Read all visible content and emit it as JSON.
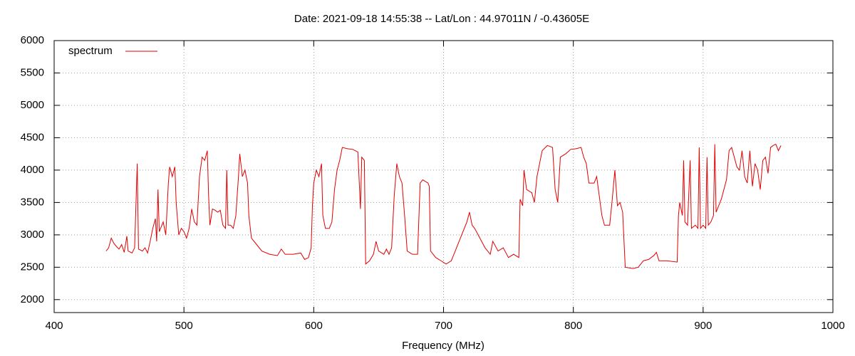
{
  "chart_data": {
    "type": "line",
    "title": "Date: 2021-09-18 14:55:38  --  Lat/Lon : 44.97011N / -0.43605E",
    "xlabel": "Frequency (MHz)",
    "xlim": [
      400,
      1000
    ],
    "xticks": [
      400,
      500,
      600,
      700,
      800,
      900,
      1000
    ],
    "ylim": [
      1800,
      6000
    ],
    "yticks": [
      2000,
      2500,
      3000,
      3500,
      4000,
      4500,
      5000,
      5500,
      6000
    ],
    "grid": true,
    "legend": "upper left",
    "x": [
      440,
      442,
      444,
      446,
      448,
      450,
      452,
      454,
      456,
      457,
      460,
      462,
      464,
      465,
      468,
      470,
      472,
      474,
      476,
      478,
      479,
      480,
      481,
      484,
      486,
      488,
      489,
      491,
      493,
      494,
      496,
      498,
      500,
      502,
      504,
      506,
      508,
      510,
      512,
      514,
      516,
      518,
      519,
      520,
      522,
      524,
      526,
      528,
      530,
      532,
      533,
      534,
      536,
      538,
      540,
      542,
      543,
      545,
      547,
      549,
      550,
      552,
      556,
      560,
      566,
      572,
      575,
      578,
      584,
      590,
      593,
      596,
      598,
      599,
      600,
      602,
      604,
      606,
      607,
      609,
      612,
      614,
      616,
      618,
      620,
      622,
      626,
      630,
      634,
      636,
      637,
      639,
      640,
      643,
      646,
      648,
      650,
      654,
      656,
      658,
      660,
      662,
      664,
      666,
      668,
      670,
      672,
      676,
      680,
      682,
      684,
      688,
      689,
      690,
      694,
      698,
      702,
      706,
      710,
      714,
      718,
      720,
      722,
      724,
      728,
      732,
      736,
      738,
      742,
      746,
      750,
      754,
      758,
      759,
      761,
      762,
      764,
      768,
      770,
      772,
      774,
      776,
      780,
      784,
      786,
      788,
      790,
      794,
      798,
      802,
      806,
      808,
      810,
      812,
      816,
      818,
      820,
      822,
      824,
      828,
      830,
      832,
      834,
      836,
      838,
      840,
      846,
      850,
      854,
      858,
      862,
      864,
      866,
      872,
      880,
      881,
      882,
      884,
      885,
      886,
      888,
      890,
      891,
      894,
      896,
      897,
      898,
      900,
      902,
      903,
      904,
      906,
      908,
      909,
      910,
      912,
      914,
      916,
      918,
      920,
      922,
      924,
      926,
      928,
      930,
      932,
      934,
      936,
      938,
      940,
      942,
      944,
      946,
      948,
      950,
      952,
      954,
      956,
      958,
      960
    ],
    "series": [
      {
        "name": "spectrum",
        "color": "#e00000",
        "values": [
          2750,
          2800,
          2950,
          2870,
          2820,
          2780,
          2850,
          2730,
          2980,
          2750,
          2720,
          2800,
          4100,
          2780,
          2750,
          2800,
          2720,
          2900,
          3100,
          3250,
          2900,
          3700,
          3050,
          3200,
          3000,
          3800,
          4050,
          3900,
          4050,
          3500,
          3000,
          3100,
          3050,
          2950,
          3100,
          3400,
          3200,
          3150,
          3900,
          4200,
          4150,
          4300,
          3600,
          3150,
          3400,
          3380,
          3350,
          3380,
          3150,
          3100,
          4000,
          3150,
          3150,
          3100,
          3300,
          3900,
          4250,
          3900,
          4000,
          3800,
          3300,
          2950,
          2850,
          2750,
          2700,
          2680,
          2780,
          2700,
          2700,
          2720,
          2620,
          2650,
          2800,
          3450,
          3800,
          4000,
          3900,
          4100,
          3300,
          3100,
          3100,
          3200,
          3700,
          4000,
          4150,
          4350,
          4330,
          4320,
          4280,
          3400,
          4200,
          4150,
          2550,
          2600,
          2700,
          2900,
          2750,
          2700,
          2780,
          2700,
          2800,
          3600,
          4100,
          3900,
          3800,
          3300,
          2750,
          2700,
          2700,
          3800,
          3850,
          3800,
          3750,
          2750,
          2650,
          2600,
          2550,
          2600,
          2800,
          3000,
          3200,
          3350,
          3150,
          3100,
          2950,
          2800,
          2700,
          2900,
          2750,
          2800,
          2650,
          2700,
          2650,
          3550,
          3450,
          4000,
          3700,
          3650,
          3500,
          3900,
          4100,
          4300,
          4380,
          4350,
          3700,
          3500,
          4200,
          4250,
          4320,
          4330,
          4350,
          4200,
          4100,
          3800,
          3800,
          3900,
          3600,
          3300,
          3150,
          3150,
          3550,
          4000,
          3450,
          3500,
          3350,
          2500,
          2480,
          2500,
          2600,
          2620,
          2680,
          2730,
          2600,
          2600,
          2580,
          3300,
          3500,
          3300,
          4150,
          3200,
          3150,
          4150,
          3100,
          3150,
          3100,
          4350,
          3100,
          3150,
          3100,
          4200,
          3150,
          3200,
          3300,
          4400,
          3350,
          3450,
          3550,
          3700,
          3850,
          4300,
          4350,
          4200,
          4050,
          4000,
          4300,
          3900,
          3800,
          4300,
          3750,
          4100,
          4000,
          3700,
          4150,
          4200,
          3950,
          4350,
          4380,
          4400,
          4300,
          4380
        ]
      }
    ]
  }
}
